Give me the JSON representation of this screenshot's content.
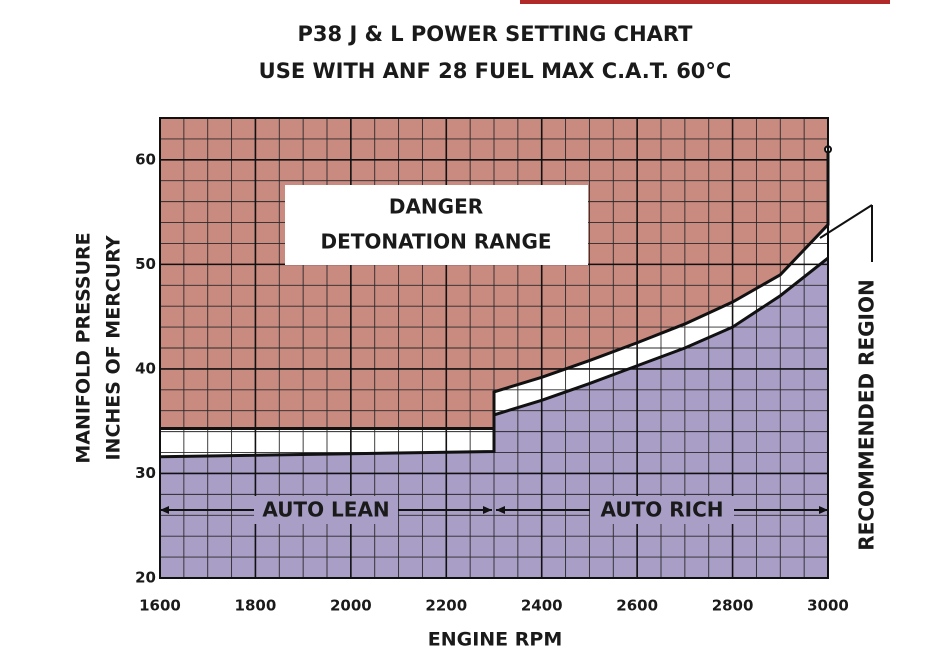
{
  "chart_data": {
    "type": "region",
    "title": "P38 J & L POWER SETTING CHART",
    "subtitle": "USE WITH ANF 28 FUEL MAX C.A.T. 60°C",
    "x_label": "ENGINE RPM",
    "y_label": [
      "MANIFOLD PRESSURE",
      "INCHES OF MERCURY"
    ],
    "annotations": {
      "danger": [
        "DANGER",
        "DETONATION RANGE"
      ],
      "lean": "AUTO LEAN",
      "rich": "AUTO RICH",
      "recommended": "RECOMMENDED REGION"
    },
    "xlim": [
      1600,
      3000
    ],
    "ylim": [
      20,
      64
    ],
    "xticks": [
      1600,
      1800,
      2000,
      2200,
      2400,
      2600,
      2800,
      3000
    ],
    "yticks": [
      20,
      30,
      40,
      50,
      60
    ],
    "grid": true,
    "minor_grid": {
      "x": 50,
      "y": 2
    },
    "series": [
      {
        "color": "#c98a80",
        "x": [
          1600,
          2300,
          2300,
          2400,
          2500,
          2600,
          2700,
          2800,
          2900,
          3000,
          3000
        ],
        "values": [
          34.3,
          34.3,
          37.8,
          39.2,
          40.8,
          42.5,
          44.3,
          46.4,
          49.0,
          53.8,
          61
        ]
      },
      {
        "color": "#a99ec6",
        "x": [
          1600,
          2300,
          2300,
          2400,
          2500,
          2600,
          2700,
          2800,
          2900,
          3000
        ],
        "values": [
          31.6,
          32.1,
          35.6,
          37.0,
          38.6,
          40.3,
          42.0,
          44.0,
          47.0,
          50.6
        ]
      }
    ]
  }
}
